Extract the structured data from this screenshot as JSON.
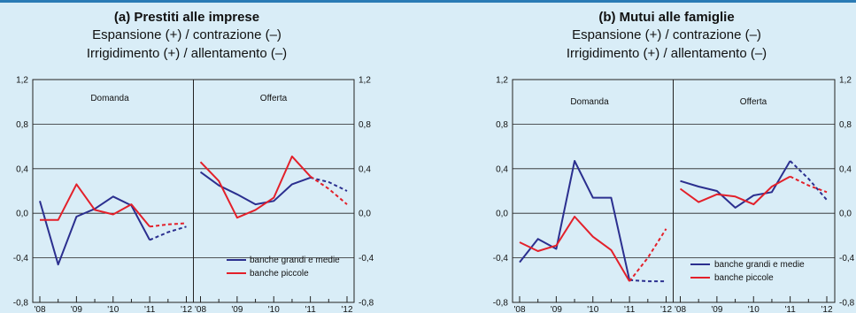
{
  "charts": [
    {
      "id": "a",
      "title": "(a) Prestiti alle imprese",
      "subtitle1": "Espansione (+) / contrazione (–)",
      "subtitle2": "Irrigidimento (+) / allentamento (–)",
      "panels": [
        "Domanda",
        "Offerta"
      ],
      "y_ticks": [
        "1,2",
        "0,8",
        "0,4",
        "0,0",
        "-0,4",
        "-0,8"
      ],
      "x_ticks": [
        "'08",
        "'09",
        "'10",
        "'11",
        "'12"
      ],
      "legend": [
        "banche grandi e medie",
        "banche piccole"
      ]
    },
    {
      "id": "b",
      "title": "(b) Mutui alle famiglie",
      "subtitle1": "Espansione (+) / contrazione (–)",
      "subtitle2": "Irrigidimento (+) / allentamento (–)",
      "panels": [
        "Domanda",
        "Offerta"
      ],
      "y_ticks": [
        "1,2",
        "0,8",
        "0,4",
        "0,0",
        "-0,4",
        "-0,8"
      ],
      "x_ticks": [
        "'08",
        "'09",
        "'10",
        "'11",
        "'12"
      ],
      "legend": [
        "banche grandi e medie",
        "banche piccole"
      ]
    }
  ],
  "colors": {
    "series_large": "#2b2f8f",
    "series_small": "#e3202a",
    "background": "#d9edf7",
    "rule": "#2a7bb5"
  },
  "chart_data": [
    {
      "type": "line",
      "title": "(a) Prestiti alle imprese",
      "ylim": [
        -0.8,
        1.2
      ],
      "x": [
        2008.0,
        2008.5,
        2009.0,
        2009.5,
        2010.0,
        2010.5,
        2011.0,
        2011.5,
        2012.0
      ],
      "panels": [
        {
          "name": "Domanda",
          "series": [
            {
              "name": "banche grandi e medie",
              "values": [
                0.11,
                -0.46,
                -0.03,
                0.04,
                0.15,
                0.07,
                -0.24
              ],
              "forecast": [
                -0.24,
                -0.17,
                -0.12
              ]
            },
            {
              "name": "banche piccole",
              "values": [
                -0.06,
                -0.06,
                0.26,
                0.03,
                -0.01,
                0.08,
                -0.12
              ],
              "forecast": [
                -0.12,
                -0.1,
                -0.09
              ]
            }
          ]
        },
        {
          "name": "Offerta",
          "series": [
            {
              "name": "banche grandi e medie",
              "values": [
                0.37,
                0.25,
                0.17,
                0.08,
                0.11,
                0.26,
                0.32
              ],
              "forecast": [
                0.32,
                0.28,
                0.2
              ]
            },
            {
              "name": "banche piccole",
              "values": [
                0.46,
                0.29,
                -0.04,
                0.03,
                0.14,
                0.51,
                0.33
              ],
              "forecast": [
                0.33,
                0.22,
                0.08
              ]
            }
          ]
        }
      ]
    },
    {
      "type": "line",
      "title": "(b) Mutui alle famiglie",
      "ylim": [
        -0.8,
        1.2
      ],
      "x": [
        2008.0,
        2008.5,
        2009.0,
        2009.5,
        2010.0,
        2010.5,
        2011.0,
        2011.5,
        2012.0
      ],
      "panels": [
        {
          "name": "Domanda",
          "series": [
            {
              "name": "banche grandi e medie",
              "values": [
                -0.44,
                -0.23,
                -0.32,
                0.47,
                0.14,
                0.14,
                -0.6
              ],
              "forecast": [
                -0.6,
                -0.61,
                -0.61
              ]
            },
            {
              "name": "banche piccole",
              "values": [
                -0.26,
                -0.34,
                -0.29,
                -0.03,
                -0.21,
                -0.33,
                -0.61
              ],
              "forecast": [
                -0.61,
                -0.4,
                -0.14
              ]
            }
          ]
        },
        {
          "name": "Offerta",
          "series": [
            {
              "name": "banche grandi e medie",
              "values": [
                0.29,
                0.24,
                0.2,
                0.05,
                0.16,
                0.19,
                0.47
              ],
              "forecast": [
                0.47,
                0.31,
                0.12
              ]
            },
            {
              "name": "banche piccole",
              "values": [
                0.22,
                0.1,
                0.17,
                0.15,
                0.08,
                0.24,
                0.33
              ],
              "forecast": [
                0.33,
                0.25,
                0.19
              ]
            }
          ]
        }
      ]
    }
  ]
}
